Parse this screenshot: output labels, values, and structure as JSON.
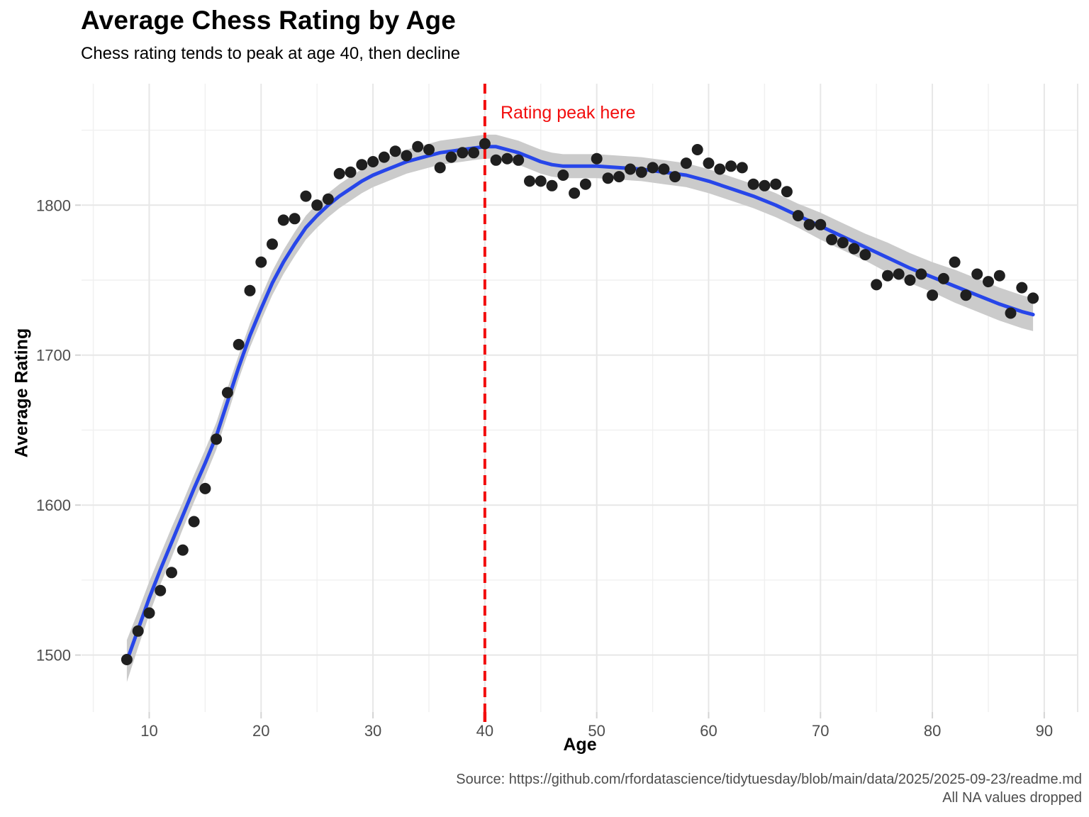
{
  "header": {
    "title": "Average Chess Rating by Age",
    "subtitle": "Chess rating tends to peak at age 40, then decline"
  },
  "annotation": {
    "label": "Rating peak here",
    "age": 40
  },
  "caption": {
    "source": "Source: https://github.com/rfordatascience/tidytuesday/blob/main/data/2025/2025-09-23/readme.md",
    "note": "All NA values dropped"
  },
  "colors": {
    "smooth_line": "#2746e9",
    "ribbon": "#cbcbcb",
    "point": "#1f1f1f",
    "accent_red": "#f20d0d",
    "grid_major": "#e7e7e7",
    "grid_minor": "#f0f0f0",
    "tick": "#d4d4d4",
    "axis_text": "#4d4d4d",
    "caption_text": "#4d4d4d"
  },
  "chart_data": {
    "type": "scatter",
    "title": "Average Chess Rating by Age",
    "subtitle": "Chess rating tends to peak at age 40, then decline",
    "xlabel": "Age",
    "ylabel": "Average Rating",
    "x_ticks": [
      10,
      20,
      30,
      40,
      50,
      60,
      70,
      80,
      90
    ],
    "x_minor_ticks": [
      5,
      15,
      25,
      35,
      45,
      55,
      65,
      75,
      85
    ],
    "y_ticks": [
      1500,
      1600,
      1700,
      1800
    ],
    "y_minor_ticks": [
      1550,
      1650,
      1750,
      1850
    ],
    "xlim": [
      3.95,
      93.05
    ],
    "ylim": [
      1462,
      1881
    ],
    "grid": true,
    "legend": "none",
    "points": {
      "x": [
        8,
        9,
        10,
        11,
        12,
        13,
        14,
        15,
        16,
        17,
        18,
        19,
        20,
        21,
        22,
        23,
        24,
        25,
        26,
        27,
        28,
        29,
        30,
        31,
        32,
        33,
        34,
        35,
        36,
        37,
        38,
        39,
        40,
        41,
        42,
        43,
        44,
        45,
        46,
        47,
        48,
        49,
        50,
        51,
        52,
        53,
        54,
        55,
        56,
        57,
        58,
        59,
        60,
        61,
        62,
        63,
        64,
        65,
        66,
        67,
        68,
        69,
        70,
        71,
        72,
        73,
        74,
        75,
        76,
        77,
        78,
        79,
        80,
        81,
        82,
        83,
        84,
        85,
        86,
        87,
        88,
        89
      ],
      "y": [
        1497,
        1516,
        1528,
        1543,
        1555,
        1570,
        1589,
        1611,
        1644,
        1675,
        1707,
        1743,
        1762,
        1774,
        1790,
        1791,
        1806,
        1800,
        1804,
        1821,
        1822,
        1827,
        1829,
        1832,
        1836,
        1833,
        1839,
        1837,
        1825,
        1832,
        1835,
        1835,
        1841,
        1830,
        1831,
        1830,
        1816,
        1816,
        1813,
        1820,
        1808,
        1814,
        1831,
        1818,
        1819,
        1824,
        1822,
        1825,
        1824,
        1819,
        1828,
        1837,
        1828,
        1824,
        1826,
        1825,
        1814,
        1813,
        1814,
        1809,
        1793,
        1787,
        1787,
        1777,
        1775,
        1771,
        1767,
        1747,
        1753,
        1754,
        1750,
        1754,
        1740,
        1751,
        1762,
        1740,
        1754,
        1749,
        1753,
        1728,
        1745,
        1738
      ]
    },
    "smooth": {
      "x": [
        8,
        9,
        10,
        11,
        12,
        13,
        14,
        15,
        16,
        17,
        18,
        19,
        20,
        21,
        22,
        23,
        24,
        25,
        26,
        27,
        28,
        29,
        30,
        31,
        32,
        33,
        34,
        35,
        36,
        37,
        38,
        39,
        40,
        41,
        42,
        43,
        44,
        45,
        46,
        47,
        48,
        50,
        52,
        54,
        56,
        58,
        60,
        62,
        64,
        66,
        68,
        70,
        72,
        74,
        76,
        78,
        80,
        82,
        84,
        86,
        88,
        89
      ],
      "y": [
        1496,
        1517,
        1538,
        1557,
        1575,
        1593,
        1611,
        1628,
        1646,
        1669,
        1692,
        1713,
        1731,
        1748,
        1762,
        1774,
        1785,
        1793,
        1800,
        1806,
        1811,
        1816,
        1820,
        1823,
        1826,
        1829,
        1831,
        1833,
        1835,
        1836,
        1837,
        1838,
        1839,
        1839,
        1837,
        1835,
        1832,
        1829,
        1827,
        1826,
        1826,
        1826,
        1825,
        1824,
        1822,
        1820,
        1816,
        1811,
        1806,
        1800,
        1793,
        1786,
        1779,
        1772,
        1765,
        1758,
        1752,
        1746,
        1740,
        1734,
        1729,
        1727
      ],
      "ci_halfwidth": [
        14,
        12,
        11,
        10,
        10,
        9,
        9,
        9,
        9,
        9,
        8,
        8,
        8,
        8,
        8,
        8,
        8,
        8,
        8,
        8,
        8,
        8,
        8,
        8,
        8,
        8,
        8,
        8,
        8,
        8,
        8,
        8,
        8,
        8,
        8,
        8,
        8,
        8,
        8,
        8,
        8,
        8,
        8,
        8,
        8,
        8,
        8,
        8,
        8,
        8,
        8,
        9,
        9,
        9,
        10,
        10,
        10,
        11,
        11,
        11,
        11,
        11
      ]
    },
    "vline": {
      "x": 40,
      "linetype": "dashed",
      "color": "red"
    },
    "peak_age": 40
  }
}
